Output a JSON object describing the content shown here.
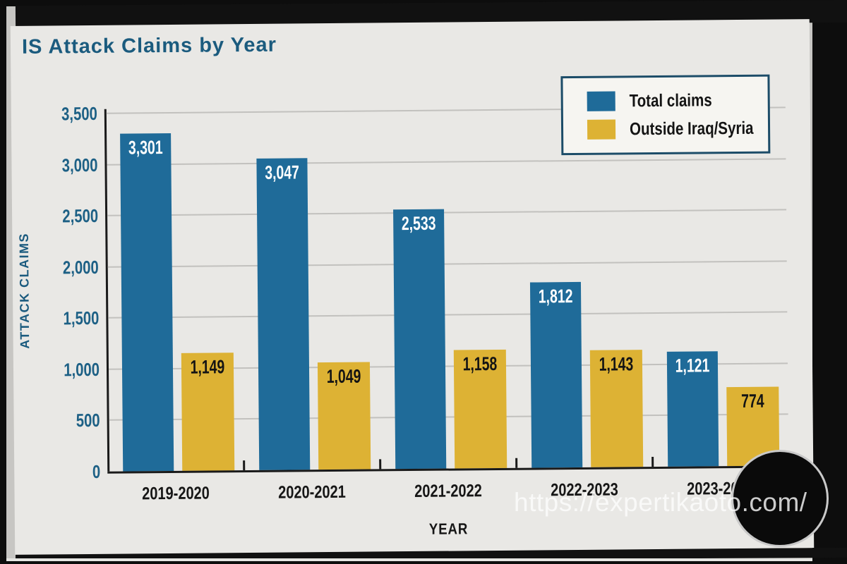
{
  "chart": {
    "title": "IS Attack Claims by Year",
    "x_axis_label": "YEAR",
    "y_axis_label": "ATTACK CLAIMS"
  },
  "legend": {
    "items": [
      {
        "label": "Total claims",
        "color": "#1f6b99"
      },
      {
        "label": "Outside Iraq/Syria",
        "color": "#ddb234"
      }
    ]
  },
  "watermark": {
    "text": "https://expertikaoto.com/"
  },
  "colors": {
    "total_claims_bar": "#1f6b99",
    "outside_bar": "#ddb234",
    "title_text": "#1b5b7e",
    "axis_tick_text": "#1d6085",
    "card_background": "#e9e8e5"
  },
  "chart_data": {
    "type": "bar",
    "title": "IS Attack Claims by Year",
    "xlabel": "YEAR",
    "ylabel": "ATTACK CLAIMS",
    "categories": [
      "2019-2020",
      "2020-2021",
      "2021-2022",
      "2022-2023",
      "2023-2024"
    ],
    "series": [
      {
        "name": "Total claims",
        "color": "#1f6b99",
        "values": [
          3301,
          3047,
          2533,
          1812,
          1121
        ],
        "labels": [
          "3,301",
          "3,047",
          "2,533",
          "1,812",
          "1,121"
        ]
      },
      {
        "name": "Outside Iraq/Syria",
        "color": "#ddb234",
        "values": [
          1149,
          1049,
          1158,
          1143,
          774
        ],
        "labels": [
          "1,149",
          "1,049",
          "1,158",
          "1,143",
          "774"
        ]
      }
    ],
    "ylim": [
      0,
      3500
    ],
    "yticks": [
      {
        "value": 0,
        "label": "0"
      },
      {
        "value": 500,
        "label": "500"
      },
      {
        "value": 1000,
        "label": "1,000"
      },
      {
        "value": 1500,
        "label": "1,500"
      },
      {
        "value": 2000,
        "label": "2,000"
      },
      {
        "value": 2500,
        "label": "2,500"
      },
      {
        "value": 3000,
        "label": "3,000"
      },
      {
        "value": 3500,
        "label": "3,500"
      }
    ],
    "grid": "horizontal",
    "legend_position": "top-right"
  }
}
